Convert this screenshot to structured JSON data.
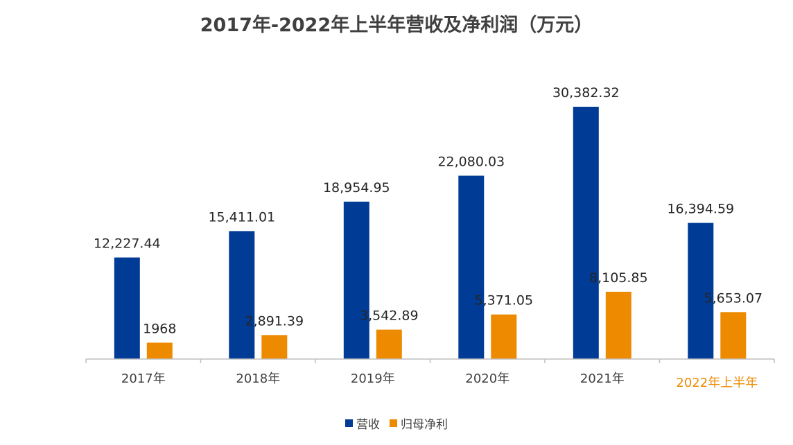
{
  "chart_data": {
    "type": "bar",
    "title": "2017年-2022年上半年营收及净利润（万元）",
    "categories": [
      "2017年",
      "2018年",
      "2019年",
      "2020年",
      "2021年",
      "2022年上半年"
    ],
    "category_colors": [
      "#404040",
      "#404040",
      "#404040",
      "#404040",
      "#404040",
      "#ED8A00"
    ],
    "series": [
      {
        "name": "营收",
        "color": "#003C96",
        "values": [
          12227.44,
          15411.01,
          18954.95,
          22080.03,
          30382.32,
          16394.59
        ],
        "labels": [
          "12,227.44",
          "15,411.01",
          "18,954.95",
          "22,080.03",
          "30,382.32",
          "16,394.59"
        ]
      },
      {
        "name": "归母净利",
        "color": "#ED8A00",
        "values": [
          1968,
          2891.39,
          3542.89,
          5371.05,
          8105.85,
          5653.07
        ],
        "labels": [
          "1968",
          "2,891.39",
          "3,542.89",
          "5,371.05",
          "8,105.85",
          "5,653.07"
        ]
      }
    ],
    "ylim": [
      0,
      30382.32
    ],
    "grid": false,
    "legend": "bottom"
  }
}
